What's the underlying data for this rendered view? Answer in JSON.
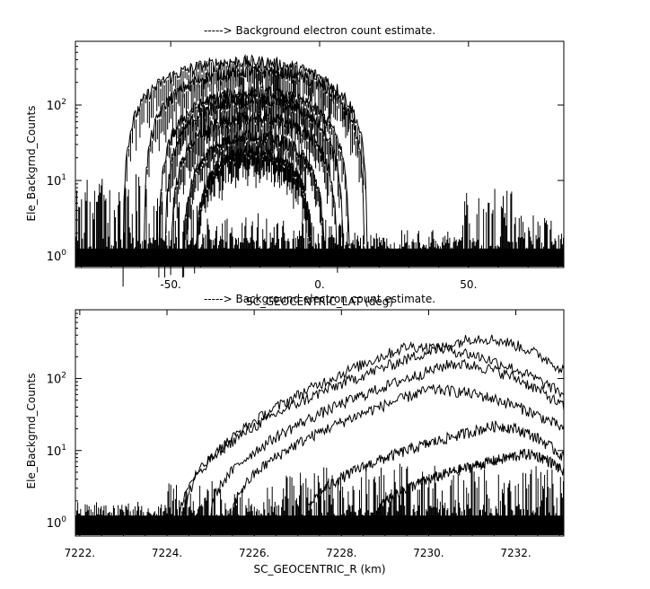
{
  "chart_data": [
    {
      "type": "line",
      "title": "-----> Background electron count estimate.",
      "xlabel": "SC_GEOCENTRIC_LAT (deg)",
      "ylabel": "Ele_Backgrnd_Counts",
      "y_scale": "log",
      "xlim": [
        -82,
        82
      ],
      "ylim": [
        0.7,
        700
      ],
      "x_ticks": [
        -50,
        0,
        50
      ],
      "x_tick_labels": [
        "-50.",
        "0.",
        "50."
      ],
      "y_ticks": [
        1,
        10,
        100
      ],
      "y_tick_labels": [
        "10^0",
        "10^1",
        "10^2"
      ],
      "grid": false,
      "legend": "none",
      "series": [
        {
          "center": -25,
          "half_width": 41,
          "peak": 380
        },
        {
          "center": -22,
          "half_width": 37,
          "peak": 290
        },
        {
          "center": -22,
          "half_width": 32,
          "peak": 150
        },
        {
          "center": -22,
          "half_width": 30,
          "peak": 120
        },
        {
          "center": -22,
          "half_width": 28,
          "peak": 70
        },
        {
          "center": -22,
          "half_width": 24,
          "peak": 40
        },
        {
          "center": -22,
          "half_width": 20,
          "peak": 25
        }
      ],
      "noise_floor": [
        {
          "x_start": -82,
          "x_end": -58,
          "level": 9
        },
        {
          "x_start": -58,
          "x_end": -40,
          "level": 6
        },
        {
          "x_start": -40,
          "x_end": 12,
          "level": 3
        },
        {
          "x_start": 12,
          "x_end": 48,
          "level": 2
        },
        {
          "x_start": 48,
          "x_end": 65,
          "level": 6
        },
        {
          "x_start": 65,
          "x_end": 82,
          "level": 3
        }
      ]
    },
    {
      "type": "line",
      "title": "-----> Background electron count estimate.",
      "xlabel": "SC_GEOCENTRIC_R (km)",
      "ylabel": "Ele_Backgrnd_Counts",
      "y_scale": "log",
      "xlim": [
        7221.9,
        7233.1
      ],
      "ylim": [
        0.65,
        900
      ],
      "x_ticks": [
        7222,
        7224,
        7226,
        7228,
        7230,
        7232
      ],
      "x_tick_labels": [
        "7222.",
        "7224.",
        "7226.",
        "7228.",
        "7230.",
        "7232."
      ],
      "y_ticks": [
        1,
        10,
        100
      ],
      "y_tick_labels": [
        "10^0",
        "10^1",
        "10^2"
      ],
      "grid": false,
      "legend": "none",
      "series": [
        {
          "x_start": 7224.3,
          "x_peak": 7231.0,
          "peak": 370,
          "x_end": 7233.1,
          "end": 130
        },
        {
          "x_start": 7224.4,
          "x_peak": 7229.5,
          "peak": 280,
          "x_end": 7233.1,
          "end": 60
        },
        {
          "x_start": 7225.0,
          "x_peak": 7230.5,
          "peak": 160,
          "x_end": 7233.1,
          "end": 40
        },
        {
          "x_start": 7225.5,
          "x_peak": 7230.0,
          "peak": 70,
          "x_end": 7233.1,
          "end": 20
        },
        {
          "x_start": 7227.2,
          "x_peak": 7231.5,
          "peak": 22,
          "x_end": 7233.1,
          "end": 8
        },
        {
          "x_start": 7228.8,
          "x_peak": 7232.2,
          "peak": 9,
          "x_end": 7233.1,
          "end": 5
        }
      ],
      "noise_floor": [
        {
          "x_start": 7221.9,
          "x_end": 7224.0,
          "level": 2
        },
        {
          "x_start": 7224.0,
          "x_end": 7226.5,
          "level": 3
        },
        {
          "x_start": 7226.5,
          "x_end": 7233.1,
          "level": 5
        }
      ]
    }
  ]
}
